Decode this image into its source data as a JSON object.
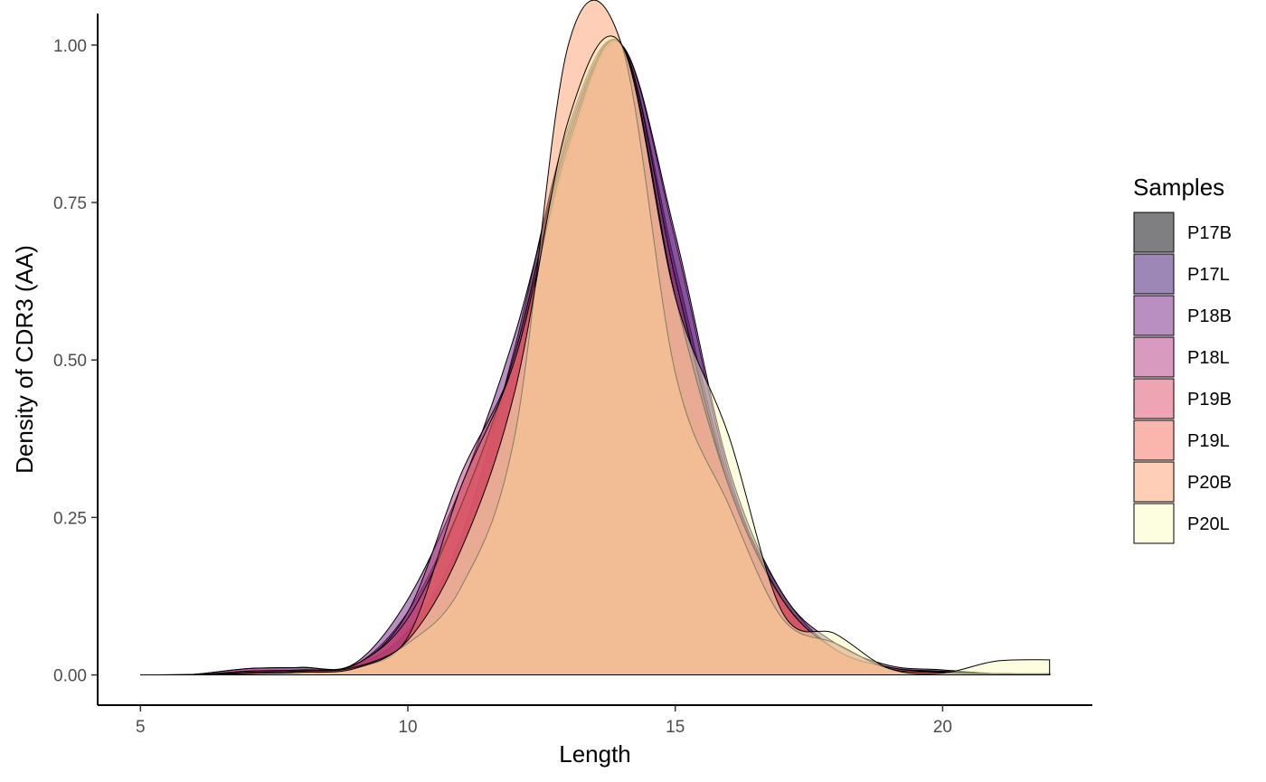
{
  "chart_data": {
    "type": "area",
    "subtype": "density",
    "xlabel": "Length",
    "ylabel": "Density of CDR3 (AA)",
    "xlim": [
      4.2,
      22.8
    ],
    "ylim": [
      -0.048,
      1.05
    ],
    "x_ticks": [
      5,
      10,
      15,
      20
    ],
    "x_tick_labels": [
      "5",
      "10",
      "15",
      "20"
    ],
    "y_ticks": [
      0,
      0.25,
      0.5,
      0.75,
      1.0
    ],
    "y_tick_labels": [
      "0.00",
      "0.25",
      "0.50",
      "0.75",
      "1.00"
    ],
    "grid": false,
    "fill_opacity": 0.5,
    "legend": {
      "title": "Samples",
      "position": "right"
    },
    "series": [
      {
        "name": "P17B",
        "color": "#000004",
        "x": [
          5,
          6,
          7,
          8,
          9,
          10,
          11,
          12,
          13,
          14,
          15,
          16,
          17,
          18,
          19,
          20,
          21,
          22
        ],
        "values": [
          0,
          0,
          0.003,
          0.005,
          0.015,
          0.07,
          0.22,
          0.52,
          0.87,
          1.0,
          0.65,
          0.31,
          0.13,
          0.04,
          0.012,
          0.004,
          0.002,
          0.001
        ]
      },
      {
        "name": "P17L",
        "color": "#3B0F70",
        "x": [
          5,
          6,
          7,
          8,
          9,
          10,
          11,
          12,
          13,
          14,
          15,
          16,
          17,
          18,
          19,
          20,
          21,
          22
        ],
        "values": [
          0,
          0,
          0.005,
          0.007,
          0.015,
          0.1,
          0.27,
          0.5,
          0.86,
          1.0,
          0.69,
          0.32,
          0.12,
          0.04,
          0.012,
          0.005,
          0.002,
          0.001
        ]
      },
      {
        "name": "P18B",
        "color": "#721F81",
        "x": [
          5,
          6,
          7,
          8,
          9,
          10,
          11,
          12,
          13,
          14,
          15,
          16,
          17,
          18,
          19,
          20,
          21,
          22
        ],
        "values": [
          0,
          0.001,
          0.01,
          0.012,
          0.018,
          0.12,
          0.3,
          0.54,
          0.85,
          1.0,
          0.7,
          0.33,
          0.13,
          0.05,
          0.015,
          0.008,
          0.002,
          0.001
        ]
      },
      {
        "name": "P18L",
        "color": "#B1357D",
        "x": [
          5,
          6,
          7,
          8,
          9,
          10,
          11,
          12,
          13,
          14,
          15,
          16,
          17,
          18,
          19,
          20,
          21,
          22
        ],
        "values": [
          0,
          0.001,
          0.01,
          0.012,
          0.015,
          0.1,
          0.32,
          0.5,
          0.83,
          1.0,
          0.63,
          0.3,
          0.12,
          0.04,
          0.012,
          0.006,
          0.002,
          0.001
        ]
      },
      {
        "name": "P19B",
        "color": "#DE4968",
        "x": [
          5,
          6,
          7,
          8,
          9,
          10,
          11,
          12,
          13,
          14,
          15,
          16,
          17,
          18,
          19,
          20,
          21,
          22
        ],
        "values": [
          0,
          0,
          0.006,
          0.008,
          0.016,
          0.09,
          0.27,
          0.51,
          0.85,
          1.0,
          0.6,
          0.3,
          0.12,
          0.04,
          0.012,
          0.004,
          0.002,
          0.001
        ]
      },
      {
        "name": "P19L",
        "color": "#F66E5C",
        "x": [
          5,
          6,
          7,
          8,
          9,
          10,
          11,
          12,
          13,
          14,
          15,
          16,
          17,
          18,
          19,
          20,
          21,
          22
        ],
        "values": [
          0,
          0,
          0.004,
          0.006,
          0.012,
          0.06,
          0.3,
          0.5,
          0.84,
          1.0,
          0.6,
          0.3,
          0.12,
          0.04,
          0.012,
          0.004,
          0.002,
          0.001
        ]
      },
      {
        "name": "P20B",
        "color": "#FE9F6D",
        "x": [
          5,
          6,
          7,
          8,
          9,
          10,
          11,
          12,
          13,
          14,
          15,
          16,
          17,
          18,
          19,
          20,
          21,
          22
        ],
        "values": [
          0,
          0,
          0.004,
          0.006,
          0.012,
          0.05,
          0.14,
          0.38,
          1.0,
          1.0,
          0.48,
          0.27,
          0.09,
          0.05,
          0.01,
          0.004,
          0.002,
          0.002
        ]
      },
      {
        "name": "P20L",
        "color": "#FCFDBF",
        "x": [
          5,
          6,
          7,
          8,
          9,
          10,
          11,
          12,
          13,
          14,
          15,
          16,
          17,
          18,
          19,
          20,
          21,
          22
        ],
        "values": [
          0,
          0,
          0.002,
          0.004,
          0.01,
          0.055,
          0.2,
          0.45,
          0.88,
          1.0,
          0.6,
          0.38,
          0.1,
          0.065,
          0.01,
          0.003,
          0.022,
          0.024
        ]
      }
    ]
  }
}
